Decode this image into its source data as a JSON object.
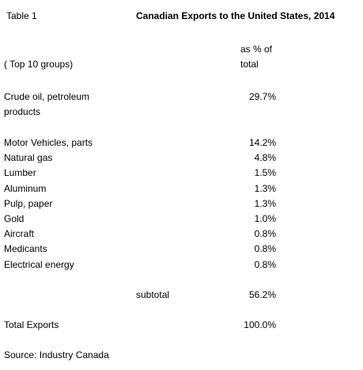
{
  "header": {
    "label": "Table 1",
    "title": "Canadian  Exports to the United States,  2014"
  },
  "table": {
    "group_note": "( Top 10 groups)",
    "value_header": [
      "as % of",
      "total"
    ],
    "rows": [
      [
        [
          "Crude oil, petroleum",
          "products"
        ],
        "29.7%"
      ],
      [
        [
          "Motor Vehicles, parts"
        ],
        "14.2%"
      ],
      [
        [
          "Natural gas"
        ],
        "4.8%"
      ],
      [
        [
          "Lumber"
        ],
        "1.5%"
      ],
      [
        [
          "Aluminum"
        ],
        "1.3%"
      ],
      [
        [
          "Pulp, paper"
        ],
        "1.3%"
      ],
      [
        [
          "Gold"
        ],
        "1.0%"
      ],
      [
        [
          "Aircraft"
        ],
        "0.8%"
      ],
      [
        [
          "Medicants"
        ],
        "0.8%"
      ],
      [
        [
          "Electrical energy"
        ],
        "0.8%"
      ]
    ],
    "subtotal": {
      "label": "subtotal",
      "value": "56.2%"
    },
    "total": {
      "label": "Total Exports",
      "value": "100.0%"
    }
  },
  "footer": {
    "source": "Source: Industry Canada"
  }
}
